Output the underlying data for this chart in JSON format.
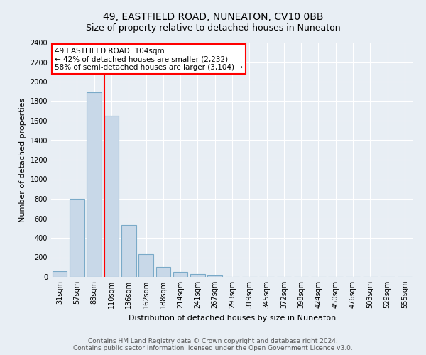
{
  "title": "49, EASTFIELD ROAD, NUNEATON, CV10 0BB",
  "subtitle": "Size of property relative to detached houses in Nuneaton",
  "xlabel": "Distribution of detached houses by size in Nuneaton",
  "ylabel": "Number of detached properties",
  "footer_line1": "Contains HM Land Registry data © Crown copyright and database right 2024.",
  "footer_line2": "Contains public sector information licensed under the Open Government Licence v3.0.",
  "categories": [
    "31sqm",
    "57sqm",
    "83sqm",
    "110sqm",
    "136sqm",
    "162sqm",
    "188sqm",
    "214sqm",
    "241sqm",
    "267sqm",
    "293sqm",
    "319sqm",
    "345sqm",
    "372sqm",
    "398sqm",
    "424sqm",
    "450sqm",
    "476sqm",
    "503sqm",
    "529sqm",
    "555sqm"
  ],
  "values": [
    55,
    800,
    1890,
    1650,
    530,
    235,
    105,
    50,
    28,
    18,
    0,
    0,
    0,
    0,
    0,
    0,
    0,
    0,
    0,
    0,
    0
  ],
  "bar_color": "#c8d8e8",
  "bar_edge_color": "#7aaac8",
  "property_line_color": "red",
  "annotation_text": "49 EASTFIELD ROAD: 104sqm\n← 42% of detached houses are smaller (2,232)\n58% of semi-detached houses are larger (3,104) →",
  "annotation_box_color": "white",
  "annotation_box_edge_color": "red",
  "ylim": [
    0,
    2400
  ],
  "yticks": [
    0,
    200,
    400,
    600,
    800,
    1000,
    1200,
    1400,
    1600,
    1800,
    2000,
    2200,
    2400
  ],
  "background_color": "#e8eef4",
  "plot_background_color": "#e8eef4",
  "title_fontsize": 10,
  "subtitle_fontsize": 9,
  "axis_label_fontsize": 8,
  "tick_fontsize": 7,
  "footer_fontsize": 6.5,
  "annotation_fontsize": 7.5
}
